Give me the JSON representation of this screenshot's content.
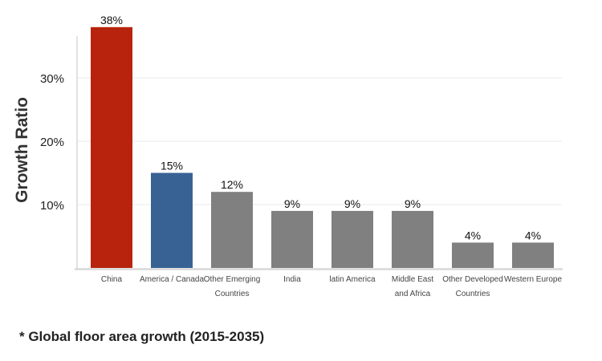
{
  "chart_data": {
    "type": "bar",
    "title": "",
    "xlabel": "",
    "ylabel": "Growth Ratio",
    "ylim": [
      0,
      38
    ],
    "yticks": [
      10,
      20,
      30
    ],
    "ytick_labels": [
      "10%",
      "20%",
      "30%"
    ],
    "grid": true,
    "categories": [
      [
        "China"
      ],
      [
        "America / Canada"
      ],
      [
        "Other Emerging",
        "Countries"
      ],
      [
        "India"
      ],
      [
        "latin America"
      ],
      [
        "Middle East",
        "and Africa"
      ],
      [
        "Other Developed",
        "Countries"
      ],
      [
        "Western Europe"
      ]
    ],
    "values": [
      38,
      15,
      12,
      9,
      9,
      9,
      4,
      4
    ],
    "data_labels": [
      "38%",
      "15%",
      "12%",
      "9%",
      "9%",
      "9%",
      "4%",
      "4%"
    ],
    "colors": [
      "#b8230e",
      "#386294",
      "#808080",
      "#808080",
      "#808080",
      "#808080",
      "#808080",
      "#808080"
    ]
  },
  "footnote": "* Global floor area growth (2015-2035)"
}
